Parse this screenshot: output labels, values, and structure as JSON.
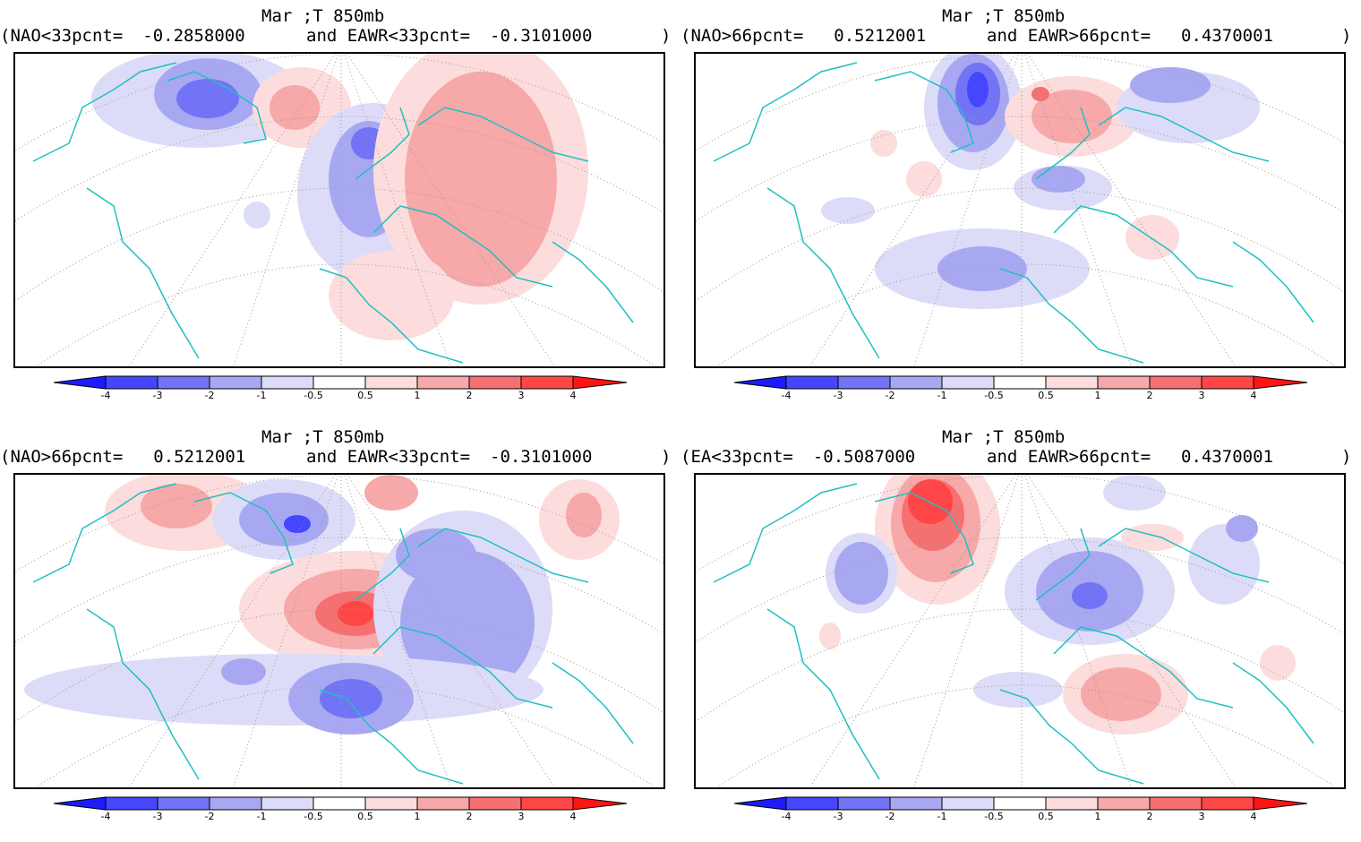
{
  "figure": {
    "panels": [
      {
        "id": "top-left",
        "title_line1": "Mar ;T 850mb",
        "left_label": "(NAO<33pcnt=",
        "left_value": "-0.2858000",
        "right_label": "and EAWR<33pcnt=",
        "right_value": "-0.3101000",
        "close_paren": ")"
      },
      {
        "id": "top-right",
        "title_line1": "Mar ;T 850mb",
        "left_label": "(NAO>66pcnt=",
        "left_value": "0.5212001",
        "right_label": "and EAWR>66pcnt=",
        "right_value": "0.4370001",
        "close_paren": ")"
      },
      {
        "id": "bottom-left",
        "title_line1": "Mar ;T 850mb",
        "left_label": "(NAO>66pcnt=",
        "left_value": "0.5212001",
        "right_label": "and EAWR<33pcnt=",
        "right_value": "-0.3101000",
        "close_paren": ")"
      },
      {
        "id": "bottom-right",
        "title_line1": "Mar ;T 850mb",
        "left_label": "(EA<33pcnt=",
        "left_value": "-0.5087000",
        "right_label": "and EAWR>66pcnt=",
        "right_value": "0.4370001",
        "close_paren": ")"
      }
    ],
    "colorbar": {
      "ticks": [
        "-4",
        "-3",
        "-2",
        "-1",
        "-0.5",
        "0.5",
        "1",
        "2",
        "3",
        "4"
      ],
      "colors": [
        "#1c1cff",
        "#4646ff",
        "#7373f5",
        "#a8a8f2",
        "#dcdcf8",
        "#ffffff",
        "#fcdcdc",
        "#f7a8a8",
        "#f57070",
        "#ff4646",
        "#ff1414"
      ]
    },
    "colors": {
      "coastline": "#20c0c0",
      "grid": "#9a9a9a",
      "frame": "#000000"
    }
  }
}
